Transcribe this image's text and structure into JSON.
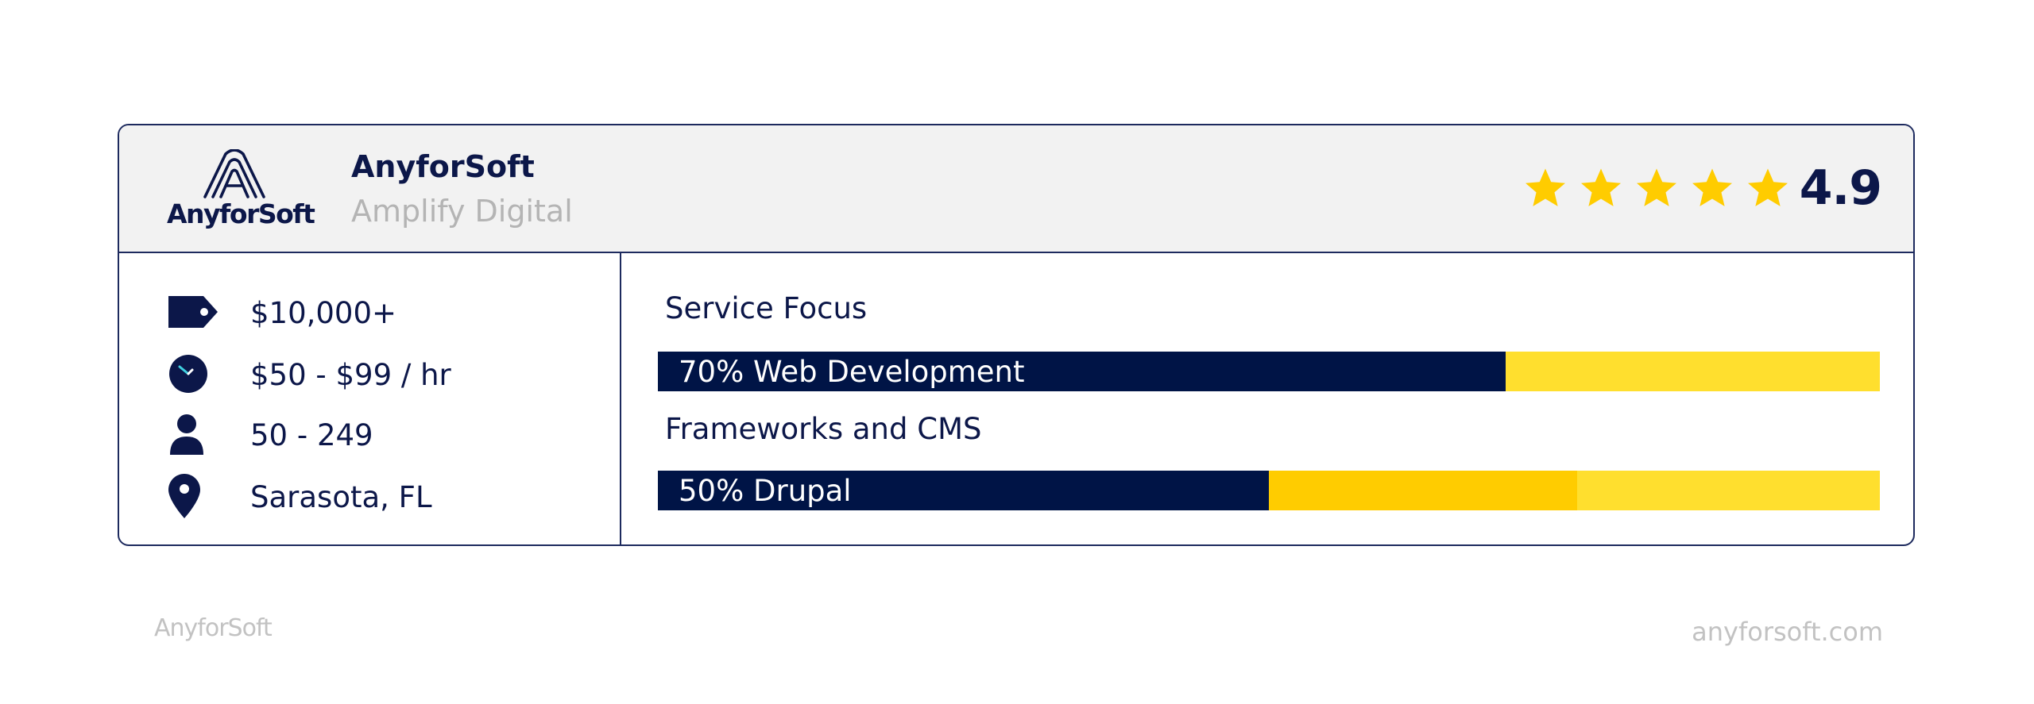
{
  "company": {
    "logo_text": "AnyforSoft",
    "name": "AnyforSoft",
    "subtitle": "Amplify Digital",
    "rating": "4.9",
    "rating_value": 4.9,
    "rating_max": 5,
    "star_color": "#ffcc00"
  },
  "details": [
    {
      "icon": "price-tag-icon",
      "text": "$10,000+"
    },
    {
      "icon": "clock-icon",
      "text": "$50 - $99 / hr"
    },
    {
      "icon": "person-icon",
      "text": "50 - 249"
    },
    {
      "icon": "location-pin-icon",
      "text": "Sarasota, FL"
    }
  ],
  "service_focus": {
    "label": "Service Focus",
    "bar_label": "70% Web Development",
    "segments": [
      {
        "percent": 70,
        "color": "#001446"
      },
      {
        "percent": 30,
        "color": "#ffdf2e"
      }
    ]
  },
  "frameworks": {
    "label": "Frameworks and CMS",
    "bar_label": "50% Drupal",
    "segments": [
      {
        "percent": 50,
        "color": "#001446"
      },
      {
        "percent": 25,
        "color": "#ffcc00"
      },
      {
        "percent": 25,
        "color": "#ffdf2e"
      }
    ]
  },
  "footer": {
    "brand": "AnyforSoft",
    "url": "anyforsoft.com"
  },
  "colors": {
    "navy": "#0c1749",
    "bar_navy": "#001446",
    "yellow": "#ffcc00",
    "light_yellow": "#ffdf2e",
    "header_bg": "#f2f2f2"
  }
}
